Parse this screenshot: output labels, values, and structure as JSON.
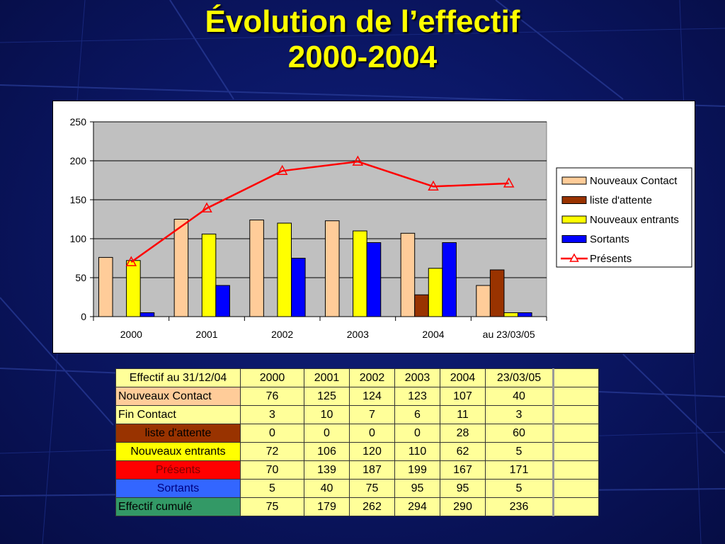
{
  "slide": {
    "title_line1": "Évolution de l’effectif",
    "title_line2": "2000-2004"
  },
  "chart_data": {
    "type": "bar",
    "categories": [
      "2000",
      "2001",
      "2002",
      "2003",
      "2004",
      "au 23/03/05"
    ],
    "ylim": [
      0,
      250
    ],
    "yticks": [
      0,
      50,
      100,
      150,
      200,
      250
    ],
    "grid": true,
    "legend_position": "right",
    "series": [
      {
        "name": "Nouveaux Contact",
        "kind": "bar",
        "color": "#ffcc99",
        "values": [
          76,
          125,
          124,
          123,
          107,
          40
        ]
      },
      {
        "name": "liste d'attente",
        "kind": "bar",
        "color": "#993300",
        "values": [
          0,
          0,
          0,
          0,
          28,
          60
        ]
      },
      {
        "name": "Nouveaux entrants",
        "kind": "bar",
        "color": "#ffff00",
        "values": [
          72,
          106,
          120,
          110,
          62,
          5
        ]
      },
      {
        "name": "Sortants",
        "kind": "bar",
        "color": "#0000ff",
        "values": [
          5,
          40,
          75,
          95,
          95,
          5
        ]
      },
      {
        "name": "Présents",
        "kind": "line",
        "marker": "triangle",
        "color": "#ff0000",
        "values": [
          70,
          139,
          187,
          199,
          167,
          171
        ]
      }
    ]
  },
  "table": {
    "header": [
      "Effectif au 31/12/04",
      "2000",
      "2001",
      "2002",
      "2003",
      "2004",
      "23/03/05",
      ""
    ],
    "rows": [
      {
        "label": "Nouveaux Contact",
        "label_bg": "#ffcc99",
        "label_color": "#000000",
        "label_align": "left",
        "values": [
          "76",
          "125",
          "124",
          "123",
          "107",
          "40"
        ]
      },
      {
        "label": "Fin Contact",
        "label_bg": "#ffff99",
        "label_color": "#000000",
        "label_align": "left",
        "values": [
          "3",
          "10",
          "7",
          "6",
          "11",
          "3"
        ]
      },
      {
        "label": "liste d'attente",
        "label_bg": "#993300",
        "label_color": "#000000",
        "label_align": "center",
        "values": [
          "0",
          "0",
          "0",
          "0",
          "28",
          "60"
        ]
      },
      {
        "label": "Nouveaux entrants",
        "label_bg": "#ffff00",
        "label_color": "#000000",
        "label_align": "center",
        "values": [
          "72",
          "106",
          "120",
          "110",
          "62",
          "5"
        ]
      },
      {
        "label": "Présents",
        "label_bg": "#ff0000",
        "label_color": "#800000",
        "label_align": "center",
        "values": [
          "70",
          "139",
          "187",
          "199",
          "167",
          "171"
        ]
      },
      {
        "label": "Sortants",
        "label_bg": "#3366ff",
        "label_color": "#000080",
        "label_align": "center",
        "values": [
          "5",
          "40",
          "75",
          "95",
          "95",
          "5"
        ]
      },
      {
        "label": "Effectif cumulé",
        "label_bg": "#339966",
        "label_color": "#000000",
        "label_align": "left",
        "values": [
          "75",
          "179",
          "262",
          "294",
          "290",
          "236"
        ]
      }
    ]
  }
}
